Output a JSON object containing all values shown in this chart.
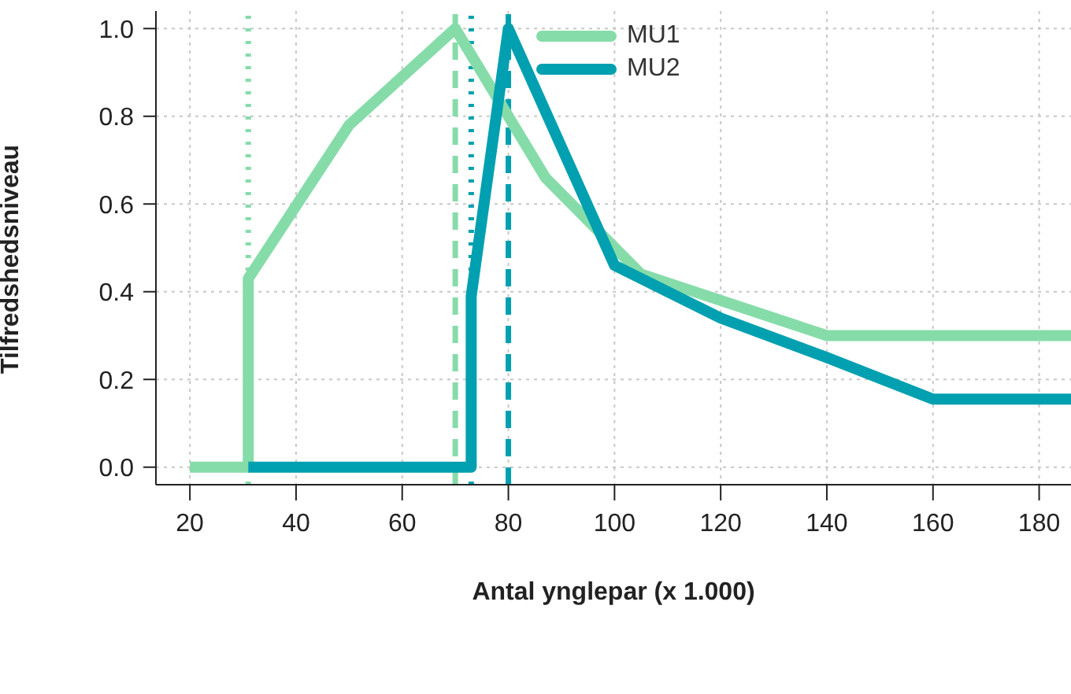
{
  "chart_data": {
    "type": "line",
    "xlabel": "Antal ynglepar (x 1.000)",
    "ylabel": "Tilfredshedsniveau",
    "xlim": [
      13.6,
      186
    ],
    "xticks": [
      20,
      40,
      60,
      80,
      100,
      120,
      140,
      160,
      180
    ],
    "ylim": [
      -0.04,
      1.04
    ],
    "yticks": [
      {
        "value": 0,
        "label": "0.0"
      },
      {
        "value": 0.2,
        "label": "0.2"
      },
      {
        "value": 0.4,
        "label": "0.4"
      },
      {
        "value": 0.6,
        "label": "0.6"
      },
      {
        "value": 0.8,
        "label": "0.8"
      },
      {
        "value": 1,
        "label": "1.0"
      }
    ],
    "grid": true,
    "legend": "top",
    "marker": "none",
    "line_style": "solid",
    "series": [
      {
        "name": "MU1",
        "color": "#86dca9",
        "x": [
          20,
          31,
          31,
          50,
          70,
          87,
          105,
          140,
          186
        ],
        "values": [
          0,
          0,
          0.43,
          0.78,
          1.0,
          0.66,
          0.44,
          0.3,
          0.3
        ]
      },
      {
        "name": "MU2",
        "color": "#00a0b0",
        "x": [
          31,
          73,
          73,
          80,
          100,
          120,
          140,
          160,
          186
        ],
        "values": [
          0,
          0,
          0.39,
          1.0,
          0.46,
          0.34,
          0.25,
          0.155,
          0.155
        ]
      }
    ],
    "ref_lines": [
      {
        "axis": "x",
        "value": 31,
        "color": "#86dca9",
        "line_style": "dotted"
      },
      {
        "axis": "x",
        "value": 70,
        "color": "#86dca9",
        "line_style": "dashed"
      },
      {
        "axis": "x",
        "value": 73,
        "color": "#00a0b0",
        "line_style": "dotted"
      },
      {
        "axis": "x",
        "value": 80,
        "color": "#00a0b0",
        "line_style": "dashed"
      }
    ]
  }
}
